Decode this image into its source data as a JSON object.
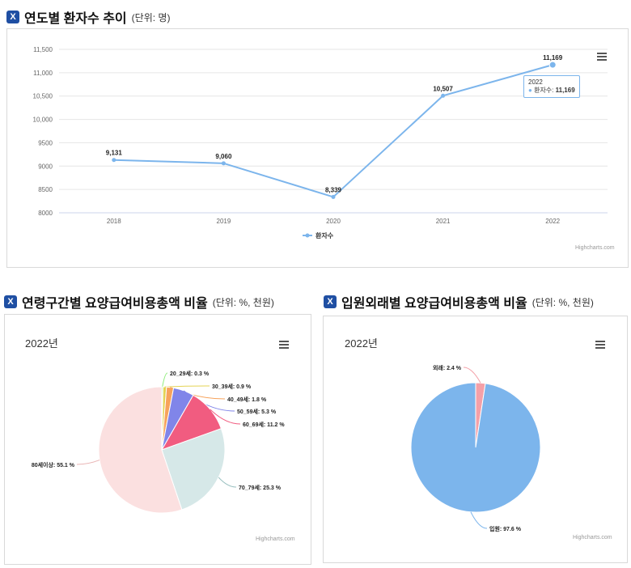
{
  "sections": {
    "trend": {
      "badge": "X",
      "title": "연도별 환자수 추이",
      "unit": "(단위: 명)"
    },
    "age": {
      "badge": "X",
      "title": "연령구간별 요양급여비용총액 비율",
      "unit": "(단위: %, 천원)"
    },
    "inout": {
      "badge": "X",
      "title": "입원외래별 요양급여비용총액 비율",
      "unit": "(단위: %, 천원)"
    }
  },
  "credit": "Highcharts.com",
  "tooltip": {
    "year": "2022",
    "bullet": "●",
    "label": "환자수:",
    "value": "11,169"
  },
  "chart_data": [
    {
      "type": "line",
      "title": "연도별 환자수 추이",
      "categories": [
        "2018",
        "2019",
        "2020",
        "2021",
        "2022"
      ],
      "series": [
        {
          "name": "환자수",
          "values": [
            9131,
            9060,
            8339,
            10507,
            11169
          ]
        }
      ],
      "data_labels": [
        "9,131",
        "9,060",
        "8,339",
        "10,507",
        "11,169"
      ],
      "ylim": [
        8000,
        11500
      ],
      "yticks": [
        8000,
        8500,
        9000,
        9500,
        10000,
        10500,
        11000,
        11500
      ],
      "ytick_labels": [
        "8000",
        "8500",
        "9000",
        "9500",
        "10,000",
        "10,500",
        "11,000",
        "11,500"
      ],
      "legend": "bottom-center",
      "color": "#7cb5ec"
    },
    {
      "type": "pie",
      "title": "연령구간별 요양급여비용총액 비율",
      "subtitle": "2022년",
      "slices": [
        {
          "label": "20_29세",
          "value": 0.3,
          "text": "20_29세: 0.3 %",
          "color": "#90ed7d"
        },
        {
          "label": "30_39세",
          "value": 0.9,
          "text": "30_39세: 0.9 %",
          "color": "#e4d354"
        },
        {
          "label": "40_49세",
          "value": 1.8,
          "text": "40_49세: 1.8 %",
          "color": "#f7a35c"
        },
        {
          "label": "50_59세",
          "value": 5.3,
          "text": "50_59세: 5.3 %",
          "color": "#8085e9"
        },
        {
          "label": "60_69세",
          "value": 11.2,
          "text": "60_69세: 11.2 %",
          "color": "#f15c80"
        },
        {
          "label": "70_79세",
          "value": 25.3,
          "text": "70_79세: 25.3 %",
          "color": "#d6e8e8"
        },
        {
          "label": "80세이상",
          "value": 55.1,
          "text": "80세이상: 55.1 %",
          "color": "#fbe0e0"
        }
      ]
    },
    {
      "type": "pie",
      "title": "입원외래별 요양급여비용총액 비율",
      "subtitle": "2022년",
      "slices": [
        {
          "label": "외래",
          "value": 2.4,
          "text": "외래: 2.4 %",
          "color": "#f4a0a8"
        },
        {
          "label": "입원",
          "value": 97.6,
          "text": "입원: 97.6 %",
          "color": "#7cb5ec"
        }
      ]
    }
  ]
}
